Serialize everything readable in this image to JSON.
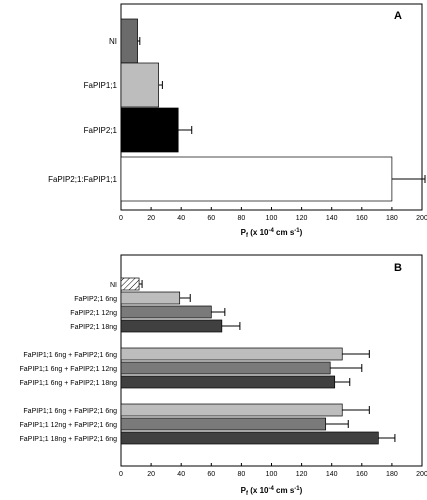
{
  "chart_data": [
    {
      "type": "bar",
      "orientation": "horizontal",
      "panel_label": "A",
      "categories": [
        "NI",
        "FaPIP1;1",
        "FaPIP2;1",
        "FaPIP2;1:FaPIP1;1"
      ],
      "values": [
        11,
        25,
        38,
        180
      ],
      "errors": [
        1.5,
        2.5,
        9,
        22
      ],
      "colors": [
        "#6b6b6b",
        "#bdbdbd",
        "#000000",
        "#ffffff"
      ],
      "xlabel": "Pf (x 10-4 cm s-1)",
      "xlim": [
        0,
        200
      ],
      "xticks": [
        "0",
        "20",
        "40",
        "60",
        "80",
        "100",
        "120",
        "140",
        "160",
        "180",
        "200"
      ]
    },
    {
      "type": "bar",
      "orientation": "horizontal",
      "panel_label": "B",
      "categories": [
        "NI",
        "FaPIP2;1 6ng",
        "FaPIP2;1 12ng",
        "FaPIP2;1 18ng",
        "FaPIP1;1 6ng + FaPIP2;1 6ng",
        "FaPIP1;1 6ng + FaPIP2;1 12ng",
        "FaPIP1;1 6ng + FaPIP2;1 18ng",
        "FaPIP1;1 6ng + FaPIP2;1 6ng",
        "FaPIP1;1 12ng + FaPIP2;1 6ng",
        "FaPIP1;1 18ng + FaPIP2;1 6ng"
      ],
      "values": [
        12,
        39,
        60,
        67,
        147,
        139,
        142,
        147,
        136,
        171
      ],
      "errors": [
        2,
        7,
        9,
        12,
        18,
        21,
        10,
        18,
        15,
        11
      ],
      "colors": [
        "hatched",
        "#bdbdbd",
        "#7a7a7a",
        "#404040",
        "#bdbdbd",
        "#7a7a7a",
        "#404040",
        "#bdbdbd",
        "#7a7a7a",
        "#404040"
      ],
      "xlabel": "Pf (x 10-4 cm s-1)",
      "xlim": [
        0,
        200
      ],
      "xticks": [
        "0",
        "20",
        "40",
        "60",
        "80",
        "100",
        "120",
        "140",
        "160",
        "180",
        "200"
      ]
    }
  ]
}
